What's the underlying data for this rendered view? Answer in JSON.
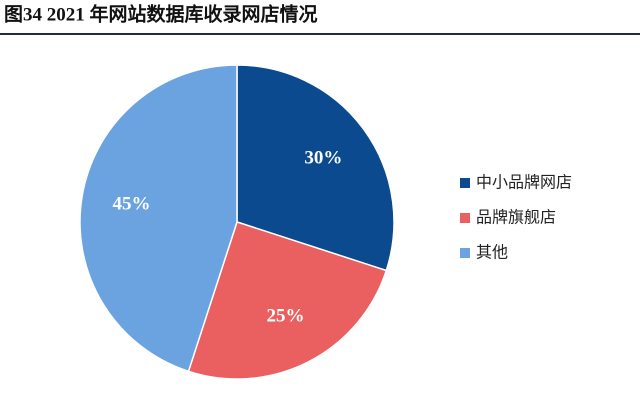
{
  "chart_data": {
    "type": "pie",
    "title": "图34 2021 年网站数据库收录网店情况",
    "categories": [
      "中小品牌网店",
      "品牌旗舰店",
      "其他"
    ],
    "values": [
      30,
      25,
      45
    ],
    "value_labels": [
      "30%",
      "25%",
      "45%"
    ],
    "colors": [
      "#0b4a8f",
      "#ea5f60",
      "#6aa3e0"
    ],
    "legend": "right"
  }
}
